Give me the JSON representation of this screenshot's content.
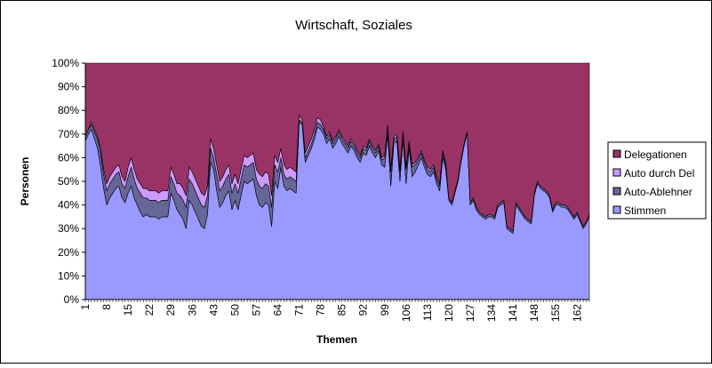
{
  "chart_data": {
    "type": "area",
    "stacked": "percent",
    "title": "Wirtschaft, Soziales",
    "xlabel": "Themen",
    "ylabel": "Personen",
    "ylim": [
      0,
      100
    ],
    "y_tick_labels": [
      "0%",
      "10%",
      "20%",
      "30%",
      "40%",
      "50%",
      "60%",
      "70%",
      "80%",
      "90%",
      "100%"
    ],
    "x_tick_labels": [
      "1",
      "8",
      "15",
      "22",
      "29",
      "36",
      "43",
      "50",
      "57",
      "64",
      "71",
      "78",
      "85",
      "92",
      "99",
      "106",
      "113",
      "120",
      "127",
      "134",
      "141",
      "148",
      "155",
      "162"
    ],
    "x_tick_step": 7,
    "grid": false,
    "legend_position": "right",
    "x_count": 166,
    "series": [
      {
        "name": "Stimmen",
        "color": "#9999ff",
        "values": [
          67,
          70,
          72,
          68,
          64,
          56,
          47,
          40,
          43,
          45,
          47,
          48,
          43,
          41,
          45,
          48,
          43,
          40,
          37,
          35,
          36,
          35,
          35,
          35,
          34,
          35,
          35,
          35,
          45,
          42,
          38,
          36,
          34,
          30,
          42,
          40,
          37,
          34,
          31,
          30,
          36,
          58,
          55,
          46,
          39,
          41,
          44,
          46,
          38,
          42,
          38,
          44,
          50,
          49,
          50,
          51,
          44,
          40,
          39,
          41,
          40,
          31,
          50,
          47,
          56,
          48,
          46,
          47,
          46,
          45,
          75,
          74,
          58,
          61,
          64,
          68,
          73,
          72,
          70,
          66,
          68,
          64,
          66,
          69,
          66,
          64,
          62,
          65,
          63,
          60,
          58,
          62,
          61,
          65,
          62,
          60,
          63,
          57,
          56,
          70,
          48,
          66,
          67,
          50,
          68,
          49,
          64,
          52,
          54,
          57,
          60,
          56,
          53,
          52,
          54,
          49,
          46,
          60,
          55,
          42,
          40,
          45,
          50,
          58,
          65,
          70,
          40,
          42,
          38,
          36,
          35,
          34,
          35,
          35,
          34,
          39,
          40,
          41,
          30,
          29,
          28,
          40,
          38,
          36,
          34,
          33,
          32,
          44,
          49,
          47,
          46,
          45,
          43,
          37,
          40,
          40,
          39,
          39,
          38,
          36,
          34,
          36,
          33,
          30,
          32,
          35
        ]
      },
      {
        "name": "Auto-Ablehner",
        "color": "#666699",
        "values": [
          2,
          2,
          2,
          3,
          4,
          6,
          6,
          6,
          6,
          6,
          6,
          6,
          6,
          6,
          7,
          8,
          8,
          7,
          8,
          8,
          7,
          7,
          7,
          7,
          7,
          7,
          7,
          7,
          7,
          7,
          7,
          8,
          8,
          9,
          9,
          9,
          9,
          9,
          9,
          9,
          8,
          6,
          5,
          7,
          7,
          7,
          7,
          7,
          7,
          7,
          7,
          7,
          7,
          7,
          7,
          7,
          7,
          8,
          8,
          8,
          8,
          8,
          7,
          7,
          4,
          5,
          5,
          5,
          5,
          5,
          1,
          1,
          2,
          2,
          2,
          2,
          2,
          2,
          2,
          2,
          2,
          2,
          2,
          2,
          2,
          2,
          2,
          2,
          2,
          2,
          2,
          2,
          2,
          2,
          2,
          2,
          2,
          2,
          4,
          3,
          6,
          2,
          2,
          4,
          2,
          6,
          2,
          4,
          3,
          2,
          2,
          2,
          2,
          2,
          2,
          2,
          2,
          2,
          2,
          1,
          1,
          1,
          1,
          1,
          1,
          1,
          1,
          1,
          1,
          1,
          1,
          1,
          1,
          1,
          1,
          1,
          1,
          1,
          1,
          1,
          1,
          1,
          1,
          1,
          1,
          1,
          1,
          1,
          1,
          1,
          1,
          1,
          1,
          1,
          1,
          1,
          1,
          1,
          1,
          1,
          1,
          1,
          1,
          1,
          1,
          1
        ]
      },
      {
        "name": "Auto durch Del",
        "color": "#cc99ff",
        "values": [
          0,
          0,
          1,
          1,
          1,
          2,
          2,
          3,
          3,
          3,
          3,
          3,
          3,
          3,
          4,
          4,
          4,
          4,
          4,
          4,
          4,
          4,
          4,
          4,
          4,
          4,
          4,
          4,
          4,
          4,
          4,
          5,
          5,
          5,
          5,
          5,
          5,
          5,
          5,
          5,
          4,
          4,
          4,
          4,
          4,
          4,
          4,
          4,
          4,
          4,
          4,
          4,
          4,
          4,
          4,
          4,
          4,
          5,
          5,
          5,
          5,
          5,
          4,
          4,
          4,
          4,
          4,
          4,
          4,
          4,
          2,
          1,
          2,
          2,
          2,
          2,
          2,
          2,
          1,
          1,
          1,
          1,
          1,
          1,
          1,
          1,
          1,
          1,
          1,
          1,
          1,
          1,
          1,
          1,
          1,
          1,
          1,
          1,
          1,
          1,
          1,
          1,
          1,
          1,
          1,
          1,
          1,
          1,
          1,
          1,
          1,
          1,
          1,
          1,
          1,
          1,
          1,
          1,
          1,
          0,
          0,
          0,
          0,
          0,
          0,
          0,
          0,
          0,
          0,
          0,
          0,
          0,
          0,
          0,
          0,
          0,
          0,
          0,
          0,
          0,
          0,
          0,
          0,
          0,
          0,
          0,
          0,
          0,
          0,
          0,
          0,
          0,
          0,
          0,
          0,
          0,
          0,
          0,
          0,
          0,
          0,
          0,
          0,
          0,
          0,
          0
        ]
      },
      {
        "name": "Delegationen",
        "color": "#993366",
        "values": [
          31,
          28,
          25,
          28,
          31,
          36,
          45,
          51,
          48,
          46,
          44,
          43,
          48,
          50,
          44,
          40,
          45,
          49,
          51,
          53,
          53,
          54,
          54,
          54,
          55,
          54,
          54,
          54,
          44,
          47,
          51,
          51,
          53,
          56,
          44,
          46,
          49,
          52,
          55,
          56,
          52,
          32,
          36,
          43,
          50,
          48,
          45,
          43,
          51,
          47,
          51,
          45,
          39,
          40,
          39,
          38,
          45,
          47,
          48,
          46,
          47,
          56,
          39,
          42,
          36,
          43,
          45,
          44,
          45,
          46,
          22,
          24,
          38,
          35,
          32,
          28,
          23,
          24,
          27,
          31,
          29,
          33,
          31,
          28,
          31,
          33,
          35,
          32,
          34,
          37,
          39,
          35,
          36,
          32,
          35,
          37,
          34,
          40,
          39,
          26,
          45,
          31,
          30,
          45,
          29,
          44,
          33,
          43,
          42,
          40,
          37,
          41,
          44,
          45,
          43,
          48,
          51,
          37,
          42,
          57,
          59,
          54,
          49,
          41,
          34,
          29,
          59,
          57,
          61,
          63,
          64,
          65,
          64,
          64,
          65,
          60,
          59,
          58,
          69,
          70,
          71,
          59,
          61,
          63,
          65,
          66,
          67,
          55,
          50,
          52,
          53,
          54,
          56,
          62,
          59,
          59,
          60,
          60,
          61,
          63,
          65,
          63,
          66,
          69,
          67,
          64
        ]
      }
    ]
  }
}
